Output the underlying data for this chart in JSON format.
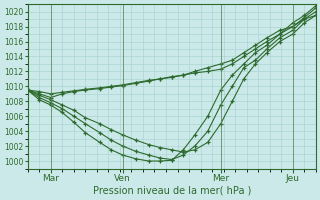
{
  "xlabel": "Pression niveau de la mer( hPa )",
  "bg_color": "#cce9e9",
  "grid_color": "#aad4d4",
  "line_color": "#2d6a2d",
  "x_tick_labels": [
    "Mar",
    "Ven",
    "Mer",
    "Jeu"
  ],
  "x_tick_positions": [
    0.08,
    0.33,
    0.67,
    0.92
  ],
  "ylim": [
    999,
    1021
  ],
  "yticks": [
    1000,
    1002,
    1004,
    1006,
    1008,
    1010,
    1012,
    1014,
    1016,
    1018,
    1020
  ],
  "xlim": [
    0,
    1
  ],
  "series": [
    {
      "x": [
        0.0,
        0.04,
        0.08,
        0.12,
        0.16,
        0.2,
        0.25,
        0.29,
        0.33,
        0.375,
        0.42,
        0.46,
        0.5,
        0.54,
        0.58,
        0.625,
        0.67,
        0.71,
        0.75,
        0.79,
        0.83,
        0.875,
        0.92,
        0.96,
        1.0
      ],
      "y": [
        1009.5,
        1009.3,
        1009.0,
        1009.2,
        1009.4,
        1009.6,
        1009.8,
        1010.0,
        1010.2,
        1010.5,
        1010.8,
        1011.0,
        1011.3,
        1011.5,
        1011.8,
        1012.0,
        1012.3,
        1013.0,
        1014.0,
        1015.0,
        1016.0,
        1017.0,
        1018.0,
        1019.0,
        1019.5
      ]
    },
    {
      "x": [
        0.0,
        0.04,
        0.08,
        0.12,
        0.16,
        0.2,
        0.25,
        0.29,
        0.33,
        0.375,
        0.42,
        0.46,
        0.5,
        0.54,
        0.58,
        0.625,
        0.67,
        0.71,
        0.75,
        0.79,
        0.83,
        0.875,
        0.92,
        0.96,
        1.0
      ],
      "y": [
        1009.5,
        1009.0,
        1008.5,
        1009.0,
        1009.3,
        1009.5,
        1009.7,
        1009.9,
        1010.1,
        1010.4,
        1010.7,
        1011.0,
        1011.2,
        1011.5,
        1012.0,
        1012.5,
        1013.0,
        1013.5,
        1014.5,
        1015.5,
        1016.5,
        1017.5,
        1018.0,
        1019.2,
        1020.5
      ]
    },
    {
      "x": [
        0.0,
        0.04,
        0.08,
        0.12,
        0.16,
        0.2,
        0.25,
        0.29,
        0.33,
        0.375,
        0.42,
        0.46,
        0.5,
        0.54,
        0.58,
        0.625,
        0.67,
        0.71,
        0.75,
        0.79,
        0.83,
        0.875,
        0.92,
        0.96,
        1.0
      ],
      "y": [
        1009.5,
        1008.8,
        1008.2,
        1007.5,
        1006.8,
        1005.8,
        1005.0,
        1004.2,
        1003.5,
        1002.8,
        1002.2,
        1001.8,
        1001.5,
        1001.2,
        1001.5,
        1002.5,
        1005.0,
        1008.0,
        1011.0,
        1013.0,
        1014.5,
        1016.0,
        1017.0,
        1018.5,
        1019.5
      ]
    },
    {
      "x": [
        0.0,
        0.04,
        0.08,
        0.12,
        0.16,
        0.2,
        0.25,
        0.29,
        0.33,
        0.375,
        0.42,
        0.46,
        0.5,
        0.54,
        0.58,
        0.625,
        0.67,
        0.71,
        0.75,
        0.79,
        0.83,
        0.875,
        0.92,
        0.96,
        1.0
      ],
      "y": [
        1009.5,
        1008.5,
        1007.8,
        1007.0,
        1006.0,
        1005.0,
        1003.8,
        1002.8,
        1002.0,
        1001.3,
        1000.8,
        1000.4,
        1000.2,
        1000.8,
        1002.0,
        1004.0,
        1007.5,
        1010.0,
        1012.5,
        1013.5,
        1015.0,
        1016.5,
        1017.5,
        1019.0,
        1020.0
      ]
    },
    {
      "x": [
        0.0,
        0.04,
        0.08,
        0.12,
        0.16,
        0.2,
        0.25,
        0.29,
        0.33,
        0.375,
        0.42,
        0.46,
        0.5,
        0.54,
        0.58,
        0.625,
        0.67,
        0.71,
        0.75,
        0.79,
        0.83,
        0.875,
        0.92,
        0.96,
        1.0
      ],
      "y": [
        1009.5,
        1008.2,
        1007.5,
        1006.5,
        1005.2,
        1003.8,
        1002.5,
        1001.5,
        1000.8,
        1000.3,
        1000.0,
        1000.0,
        1000.1,
        1001.5,
        1003.5,
        1006.0,
        1009.5,
        1011.5,
        1013.0,
        1014.5,
        1015.5,
        1017.0,
        1018.5,
        1019.5,
        1020.8
      ]
    }
  ],
  "vlines": [
    0.08,
    0.33,
    0.67,
    0.92
  ]
}
